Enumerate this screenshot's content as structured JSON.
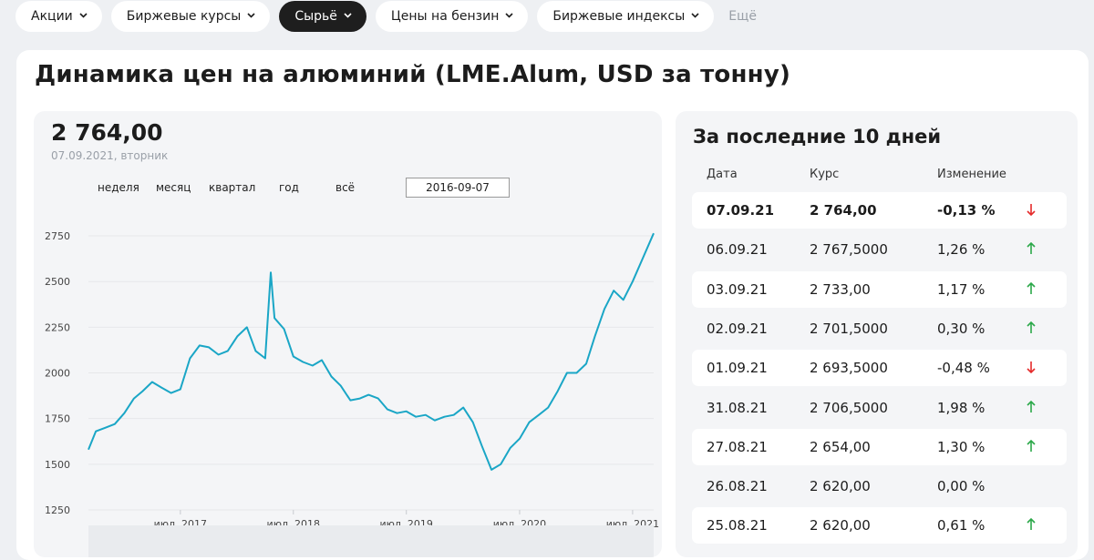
{
  "nav": {
    "tabs": [
      {
        "label": "Акции",
        "active": false
      },
      {
        "label": "Биржевые курсы",
        "active": false
      },
      {
        "label": "Сырьё",
        "active": true
      },
      {
        "label": "Цены на бензин",
        "active": false
      },
      {
        "label": "Биржевые индексы",
        "active": false
      }
    ],
    "more_label": "Ещё"
  },
  "page_title": "Динамика цен на алюминий (LME.Alum, USD за тонну)",
  "quote": {
    "price": "2 764,00",
    "date": "07.09.2021, вторник"
  },
  "ranges": [
    "неделя",
    "месяц",
    "квартал",
    "год",
    "всё"
  ],
  "date_input": {
    "value": "2016-09-07"
  },
  "colors": {
    "line": "#1aa6c6",
    "up": "#2ca84a",
    "down": "#e52b2b",
    "active_tab": "#1e1e1e"
  },
  "chart_data": {
    "type": "line",
    "ylim": [
      1250,
      2800
    ],
    "y_ticks": [
      1250,
      1500,
      1750,
      2000,
      2250,
      2500,
      2750
    ],
    "x_tick_labels": [
      "июл. 2017",
      "июл. 2018",
      "июл. 2019",
      "июл. 2020",
      "июл. 2021"
    ],
    "x_tick_dates": [
      "2017-07-01",
      "2018-07-01",
      "2019-07-01",
      "2020-07-01",
      "2021-07-01"
    ],
    "x_range": [
      "2016-09-07",
      "2021-09-07"
    ],
    "series": [
      {
        "x": [
          "2016-09-07",
          "2016-10-01",
          "2016-11-01",
          "2016-12-01",
          "2017-01-01",
          "2017-02-01",
          "2017-03-01",
          "2017-04-01",
          "2017-05-01",
          "2017-06-01",
          "2017-07-01",
          "2017-08-01",
          "2017-09-01",
          "2017-10-01",
          "2017-11-01",
          "2017-12-01",
          "2018-01-01",
          "2018-02-01",
          "2018-03-01",
          "2018-04-01",
          "2018-04-19",
          "2018-05-01",
          "2018-06-01",
          "2018-07-01",
          "2018-08-01",
          "2018-09-01",
          "2018-10-01",
          "2018-11-01",
          "2018-12-01",
          "2019-01-01",
          "2019-02-01",
          "2019-03-01",
          "2019-04-01",
          "2019-05-01",
          "2019-06-01",
          "2019-07-01",
          "2019-08-01",
          "2019-09-01",
          "2019-10-01",
          "2019-11-01",
          "2019-12-01",
          "2020-01-01",
          "2020-02-01",
          "2020-03-01",
          "2020-04-01",
          "2020-05-01",
          "2020-06-01",
          "2020-07-01",
          "2020-08-01",
          "2020-09-01",
          "2020-10-01",
          "2020-11-01",
          "2020-12-01",
          "2021-01-01",
          "2021-02-01",
          "2021-03-01",
          "2021-04-01",
          "2021-05-01",
          "2021-06-01",
          "2021-07-01",
          "2021-08-01",
          "2021-09-07"
        ],
        "values": [
          1580,
          1680,
          1700,
          1720,
          1780,
          1860,
          1900,
          1950,
          1920,
          1890,
          1910,
          2080,
          2150,
          2140,
          2100,
          2120,
          2200,
          2250,
          2120,
          2080,
          2550,
          2300,
          2240,
          2090,
          2060,
          2040,
          2070,
          1980,
          1930,
          1850,
          1860,
          1880,
          1860,
          1800,
          1780,
          1790,
          1760,
          1770,
          1740,
          1760,
          1770,
          1810,
          1730,
          1600,
          1470,
          1500,
          1590,
          1640,
          1730,
          1770,
          1810,
          1900,
          2000,
          2000,
          2050,
          2200,
          2350,
          2450,
          2400,
          2500,
          2620,
          2764
        ]
      }
    ]
  },
  "side": {
    "title": "За последние 10 дней",
    "headers": {
      "date": "Дата",
      "rate": "Курс",
      "change": "Изменение"
    },
    "rows": [
      {
        "date": "07.09.21",
        "rate": "2 764,00",
        "change": "-0,13 %",
        "dir": "down"
      },
      {
        "date": "06.09.21",
        "rate": "2 767,5000",
        "change": "1,26 %",
        "dir": "up"
      },
      {
        "date": "03.09.21",
        "rate": "2 733,00",
        "change": "1,17 %",
        "dir": "up"
      },
      {
        "date": "02.09.21",
        "rate": "2 701,5000",
        "change": "0,30 %",
        "dir": "up"
      },
      {
        "date": "01.09.21",
        "rate": "2 693,5000",
        "change": "-0,48 %",
        "dir": "down"
      },
      {
        "date": "31.08.21",
        "rate": "2 706,5000",
        "change": "1,98 %",
        "dir": "up"
      },
      {
        "date": "27.08.21",
        "rate": "2 654,00",
        "change": "1,30 %",
        "dir": "up"
      },
      {
        "date": "26.08.21",
        "rate": "2 620,00",
        "change": "0,00 %",
        "dir": "none"
      },
      {
        "date": "25.08.21",
        "rate": "2 620,00",
        "change": "0,61 %",
        "dir": "up"
      }
    ]
  }
}
